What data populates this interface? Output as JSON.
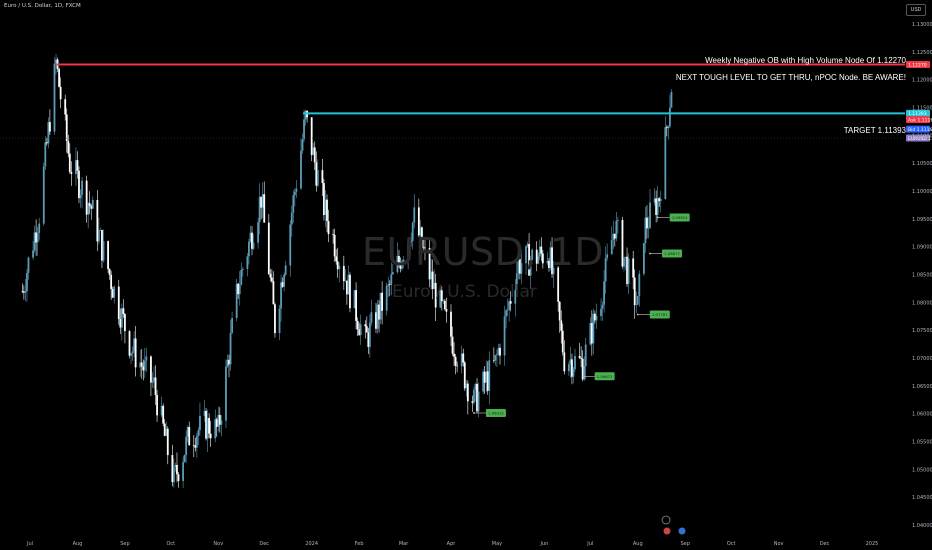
{
  "header": {
    "symbol_title": "Euro / U.S. Dollar, 1D, FXCM"
  },
  "currency_button": "USD",
  "annotations": {
    "weekly_ob": "Weekly Negative OB with High Volume Node Of 1.12270",
    "next_level": "NEXT TOUGH LEVEL TO GET THRU, nPOC Node. BE AWARE!",
    "target": "TARGET 1.11393"
  },
  "watermark": {
    "symbol": "EURUSD, 1D",
    "name": "Euro / U.S. Dollar"
  },
  "colors": {
    "up": "#5b9cb8",
    "down": "#ffffff",
    "resistance": "#f23645",
    "target": "#22c4d6",
    "label_green": "#4caf50"
  },
  "chart_data": {
    "type": "candlestick",
    "symbol": "EURUSD",
    "timeframe": "1D",
    "ylim": [
      1.04,
      1.1325
    ],
    "y_ticks": [
      "1.13250",
      "1.13000",
      "1.12500",
      "1.12000",
      "1.11500",
      "1.11000",
      "1.10500",
      "1.10000",
      "1.09500",
      "1.09000",
      "1.08500",
      "1.08000",
      "1.07500",
      "1.07000",
      "1.06500",
      "1.06000",
      "1.05500",
      "1.05000",
      "1.04500",
      "1.04000"
    ],
    "x_ticks": [
      "Jul",
      "Aug",
      "Sep",
      "Oct",
      "Nov",
      "Dec",
      "2024",
      "Feb",
      "Mar",
      "Apr",
      "May",
      "Jun",
      "Jul",
      "Aug",
      "Sep",
      "Oct",
      "Nov",
      "Dec",
      "2025"
    ],
    "close_path": [
      [
        "2023-06-26",
        1.082
      ],
      [
        "2023-07-07",
        1.096
      ],
      [
        "2023-07-18",
        1.123
      ],
      [
        "2023-07-27",
        1.105
      ],
      [
        "2023-08-10",
        1.097
      ],
      [
        "2023-08-24",
        1.083
      ],
      [
        "2023-09-05",
        1.072
      ],
      [
        "2023-09-20",
        1.065
      ],
      [
        "2023-10-03",
        1.048
      ],
      [
        "2023-10-13",
        1.056
      ],
      [
        "2023-10-24",
        1.058
      ],
      [
        "2023-11-01",
        1.057
      ],
      [
        "2023-11-14",
        1.083
      ],
      [
        "2023-11-29",
        1.099
      ],
      [
        "2023-12-08",
        1.076
      ],
      [
        "2023-12-28",
        1.113
      ],
      [
        "2024-01-10",
        1.096
      ],
      [
        "2024-02-05",
        1.073
      ],
      [
        "2024-02-20",
        1.082
      ],
      [
        "2024-03-08",
        1.095
      ],
      [
        "2024-03-20",
        1.083
      ],
      [
        "2024-04-01",
        1.074
      ],
      [
        "2024-04-16",
        1.062
      ],
      [
        "2024-04-30",
        1.069
      ],
      [
        "2024-05-15",
        1.087
      ],
      [
        "2024-06-04",
        1.089
      ],
      [
        "2024-06-14",
        1.07
      ],
      [
        "2024-06-26",
        1.069
      ],
      [
        "2024-07-08",
        1.081
      ],
      [
        "2024-07-17",
        1.094
      ],
      [
        "2024-08-01",
        1.079
      ],
      [
        "2024-08-05",
        1.093
      ],
      [
        "2024-08-15",
        1.099
      ],
      [
        "2024-08-23",
        1.119
      ]
    ],
    "horizontal_levels": [
      {
        "value": 1.1227,
        "price_label": "1.12270",
        "color": "#f23645"
      },
      {
        "value": 1.11393,
        "price_label": "1.11393",
        "color": "#22c4d6"
      }
    ],
    "right_tags": [
      {
        "price": 1.11393,
        "label": "1.11393",
        "color": "#22c4d6"
      },
      {
        "price": 1.1128,
        "label": "Ask 1.11166",
        "color": "#f23645"
      },
      {
        "price": 1.1111,
        "label": "Bid 1.11164",
        "color": "#2962ff"
      },
      {
        "price": 1.1095,
        "label": "EURUSD 1.11164",
        "color": "#8e7cc3"
      }
    ],
    "swing_labels": [
      {
        "date": "2024-04-16",
        "price": 1.06012,
        "label": "1.06012"
      },
      {
        "date": "2024-06-26",
        "price": 1.06671,
        "label": "1.06671"
      },
      {
        "date": "2024-08-01",
        "price": 1.07781,
        "label": "1.07781"
      },
      {
        "date": "2024-08-09",
        "price": 1.08877,
        "label": "1.08877"
      },
      {
        "date": "2024-08-14",
        "price": 1.09524,
        "label": "1.09524"
      }
    ]
  }
}
